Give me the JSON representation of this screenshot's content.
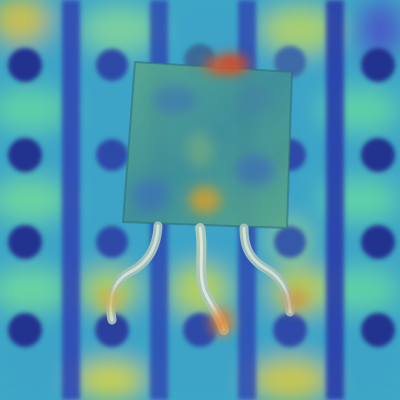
{
  "image": {
    "subject": "to-92-transistor-on-stripboard",
    "overlay": "attention-heatmap",
    "colors": {
      "board_base": "#46b0c8",
      "trace_dark": "#2c3db0",
      "hole": "#222a8c",
      "heat_warm": "#e8d040",
      "heat_hot": "#e07030",
      "package_body": "#4a9a8c",
      "lead_metal": "#b8cfc6"
    }
  }
}
